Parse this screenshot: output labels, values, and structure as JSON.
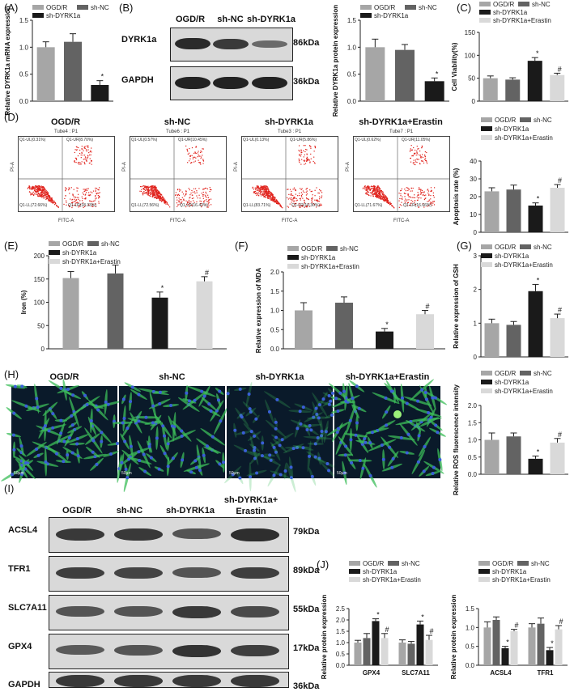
{
  "colors": {
    "ogdr": "#a6a6a6",
    "shnc": "#636363",
    "sh": "#1a1a1a",
    "erastin": "#d9d9d9",
    "axis": "#222222"
  },
  "panels": {
    "A": "(A)",
    "B": "(B)",
    "C": "(C)",
    "D": "(D)",
    "E": "(E)",
    "F": "(F)",
    "G": "(G)",
    "H": "(H)",
    "I": "(I)",
    "J": "(J)"
  },
  "legend": {
    "ogdr": "OGD/R",
    "shnc": "sh-NC",
    "sh": "sh-DYRK1a",
    "erastin": "sh-DYRK1a+Erastin"
  },
  "blotB": {
    "columns": [
      "OGD/R",
      "sh-NC",
      "sh-DYRK1a"
    ],
    "rows": [
      {
        "label": "DYRK1a",
        "kda": "86kDa"
      },
      {
        "label": "GAPDH",
        "kda": "36kDa"
      }
    ]
  },
  "blotI": {
    "columns": [
      "OGD/R",
      "sh-NC",
      "sh-DYRK1a",
      "sh-DYRK1a+",
      "Erastin"
    ],
    "rows": [
      {
        "label": "ACSL4",
        "kda": "79kDa"
      },
      {
        "label": "TFR1",
        "kda": "89kDa"
      },
      {
        "label": "SLC7A11",
        "kda": "55kDa"
      },
      {
        "label": "GPX4",
        "kda": "17kDa"
      },
      {
        "label": "GAPDH",
        "kda": "36kDa"
      }
    ]
  },
  "flow": {
    "plots": [
      {
        "title": "OGD/R",
        "tube": "Tube4 : P1",
        "ul": "Q1-UL(0.31%)",
        "ur": "Q1-UR(8.70%)",
        "ll": "Q1-LL(72.66%)",
        "lr": "Q1-LR(18.33%)"
      },
      {
        "title": "sh-NC",
        "tube": "Tube6 : P1",
        "ul": "Q1-UL(0.57%)",
        "ur": "Q1-UR(10.45%)",
        "ll": "Q1-LL(72.56%)",
        "lr": "Q1-LR(16.42%)"
      },
      {
        "title": "sh-DYRK1a",
        "tube": "Tube3 : P1",
        "ul": "Q1-UL(0.13%)",
        "ur": "Q1-UR(5.86%)",
        "ll": "Q1-LL(83.71%)",
        "lr": "Q1-LR(10.30%)"
      },
      {
        "title": "sh-DYRK1a+Erastin",
        "tube": "Tube7 : P1",
        "ul": "Q1-UL(0.62%)",
        "ur": "Q1-UR(11.05%)",
        "ll": "Q1-LL(71.67%)",
        "lr": "Q1-LR(16.66%)"
      }
    ],
    "xaxis": "FITC-A",
    "yaxis": "PI-A"
  },
  "micro": {
    "titles": [
      "OGD/R",
      "sh-NC",
      "sh-DYRK1a",
      "sh-DYRK1a+Erastin"
    ],
    "scale": "50μm"
  },
  "chart_data": [
    {
      "id": "A",
      "type": "bar",
      "categories": [
        "OGD/R",
        "sh-NC",
        "sh-DYRK1a"
      ],
      "values": [
        1.0,
        1.1,
        0.3
      ],
      "errors": [
        0.1,
        0.15,
        0.08
      ],
      "marks": [
        "",
        "",
        "*"
      ],
      "ylabel": "Relative DYRK1a mRNA expression",
      "ylim": [
        0,
        1.5
      ],
      "ticks": [
        0,
        0.5,
        1.0,
        1.5
      ],
      "ticklabels": [
        "0.0",
        "0.5",
        "1.0",
        "1.5"
      ]
    },
    {
      "id": "B",
      "type": "bar",
      "categories": [
        "OGD/R",
        "sh-NC",
        "sh-DYRK1a"
      ],
      "values": [
        1.0,
        0.95,
        0.37
      ],
      "errors": [
        0.15,
        0.1,
        0.06
      ],
      "marks": [
        "",
        "",
        "*"
      ],
      "ylabel": "Relative DYRK1a protein expression",
      "ylim": [
        0,
        1.5
      ],
      "ticks": [
        0,
        0.5,
        1.0,
        1.5
      ],
      "ticklabels": [
        "0.0",
        "0.5",
        "1.0",
        "1.5"
      ]
    },
    {
      "id": "C",
      "type": "bar",
      "categories": [
        "OGD/R",
        "sh-NC",
        "sh-DYRK1a",
        "sh-DYRK1a+Erastin"
      ],
      "values": [
        50,
        47,
        88,
        57
      ],
      "errors": [
        5,
        4,
        7,
        4
      ],
      "marks": [
        "",
        "",
        "*",
        "#"
      ],
      "ylabel": "Cell Viability(%)",
      "ylim": [
        0,
        150
      ],
      "ticks": [
        0,
        50,
        100,
        150
      ],
      "ticklabels": [
        "0",
        "50",
        "100",
        "150"
      ]
    },
    {
      "id": "D",
      "type": "bar",
      "categories": [
        "OGD/R",
        "sh-NC",
        "sh-DYRK1a",
        "sh-DYRK1a+Erastin"
      ],
      "values": [
        23,
        24,
        15,
        25
      ],
      "errors": [
        2,
        2.5,
        1.5,
        1.8
      ],
      "marks": [
        "",
        "",
        "*",
        "#"
      ],
      "ylabel": "Apoptosis rate (%)",
      "ylim": [
        0,
        40
      ],
      "ticks": [
        0,
        10,
        20,
        30,
        40
      ],
      "ticklabels": [
        "0",
        "10",
        "20",
        "30",
        "40"
      ]
    },
    {
      "id": "E",
      "type": "bar",
      "categories": [
        "OGD/R",
        "sh-NC",
        "sh-DYRK1a",
        "sh-DYRK1a+Erastin"
      ],
      "values": [
        152,
        162,
        110,
        145
      ],
      "errors": [
        14,
        18,
        12,
        10
      ],
      "marks": [
        "",
        "",
        "*",
        "#"
      ],
      "ylabel": "Iron (%)",
      "ylim": [
        0,
        200
      ],
      "ticks": [
        0,
        50,
        100,
        150,
        200
      ],
      "ticklabels": [
        "0",
        "50",
        "100",
        "150",
        "200"
      ]
    },
    {
      "id": "F",
      "type": "bar",
      "categories": [
        "OGD/R",
        "sh-NC",
        "sh-DYRK1a",
        "sh-DYRK1a+Erastin"
      ],
      "values": [
        1.0,
        1.2,
        0.45,
        0.9
      ],
      "errors": [
        0.2,
        0.15,
        0.08,
        0.1
      ],
      "marks": [
        "",
        "",
        "*",
        "#"
      ],
      "ylabel": "Relative expression of MDA",
      "ylim": [
        0,
        2.0
      ],
      "ticks": [
        0,
        0.5,
        1.0,
        1.5,
        2.0
      ],
      "ticklabels": [
        "0.0",
        "0.5",
        "1.0",
        "1.5",
        "2.0"
      ]
    },
    {
      "id": "G",
      "type": "bar",
      "categories": [
        "OGD/R",
        "sh-NC",
        "sh-DYRK1a",
        "sh-DYRK1a+Erastin"
      ],
      "values": [
        1.0,
        0.95,
        1.95,
        1.15
      ],
      "errors": [
        0.12,
        0.1,
        0.2,
        0.12
      ],
      "marks": [
        "",
        "",
        "*",
        "#"
      ],
      "ylabel": "Relative expression of GSH",
      "ylim": [
        0,
        3
      ],
      "ticks": [
        0,
        1,
        2,
        3
      ],
      "ticklabels": [
        "0",
        "1",
        "2",
        "3"
      ]
    },
    {
      "id": "H",
      "type": "bar",
      "categories": [
        "OGD/R",
        "sh-NC",
        "sh-DYRK1a",
        "sh-DYRK1a+Erastin"
      ],
      "values": [
        1.0,
        1.1,
        0.45,
        0.92
      ],
      "errors": [
        0.2,
        0.1,
        0.08,
        0.12
      ],
      "marks": [
        "",
        "",
        "*",
        "#"
      ],
      "ylabel": "Relative ROS fluorescence intensity",
      "ylim": [
        0,
        2.0
      ],
      "ticks": [
        0,
        0.5,
        1.0,
        1.5,
        2.0
      ],
      "ticklabels": [
        "0.0",
        "0.5",
        "1.0",
        "1.5",
        "2.0"
      ]
    },
    {
      "id": "J1",
      "type": "bar",
      "groups": [
        "GPX4",
        "SLC7A11"
      ],
      "series": [
        {
          "name": "OGD/R",
          "values": [
            1.0,
            1.0
          ]
        },
        {
          "name": "sh-NC",
          "values": [
            1.2,
            0.95
          ]
        },
        {
          "name": "sh-DYRK1a",
          "values": [
            1.95,
            1.8
          ]
        },
        {
          "name": "sh-DYRK1a+Erastin",
          "values": [
            1.2,
            1.12
          ]
        }
      ],
      "errors": [
        [
          0.1,
          0.12
        ],
        [
          0.2,
          0.1
        ],
        [
          0.1,
          0.15
        ],
        [
          0.2,
          0.2
        ]
      ],
      "marks": [
        [
          "",
          ""
        ],
        [
          "",
          ""
        ],
        [
          "*",
          "*"
        ],
        [
          "#",
          "#"
        ]
      ],
      "ylabel": "Relative protein expression",
      "ylim": [
        0,
        2.5
      ],
      "ticks": [
        0,
        0.5,
        1.0,
        1.5,
        2.0,
        2.5
      ],
      "ticklabels": [
        "0.0",
        "0.5",
        "1.0",
        "1.5",
        "2.0",
        "2.5"
      ]
    },
    {
      "id": "J2",
      "type": "bar",
      "groups": [
        "ACSL4",
        "TFR1"
      ],
      "series": [
        {
          "name": "OGD/R",
          "values": [
            1.0,
            1.0
          ]
        },
        {
          "name": "sh-NC",
          "values": [
            1.2,
            1.1
          ]
        },
        {
          "name": "sh-DYRK1a",
          "values": [
            0.45,
            0.4
          ]
        },
        {
          "name": "sh-DYRK1a+Erastin",
          "values": [
            0.9,
            0.95
          ]
        }
      ],
      "errors": [
        [
          0.15,
          0.1
        ],
        [
          0.08,
          0.15
        ],
        [
          0.05,
          0.07
        ],
        [
          0.05,
          0.1
        ]
      ],
      "marks": [
        [
          "",
          ""
        ],
        [
          "",
          ""
        ],
        [
          "*",
          "*"
        ],
        [
          "#",
          "#"
        ]
      ],
      "ylabel": "Relative protein expression",
      "ylim": [
        0,
        1.5
      ],
      "ticks": [
        0,
        0.5,
        1.0,
        1.5
      ],
      "ticklabels": [
        "0.0",
        "0.5",
        "1.0",
        "1.5"
      ]
    }
  ]
}
